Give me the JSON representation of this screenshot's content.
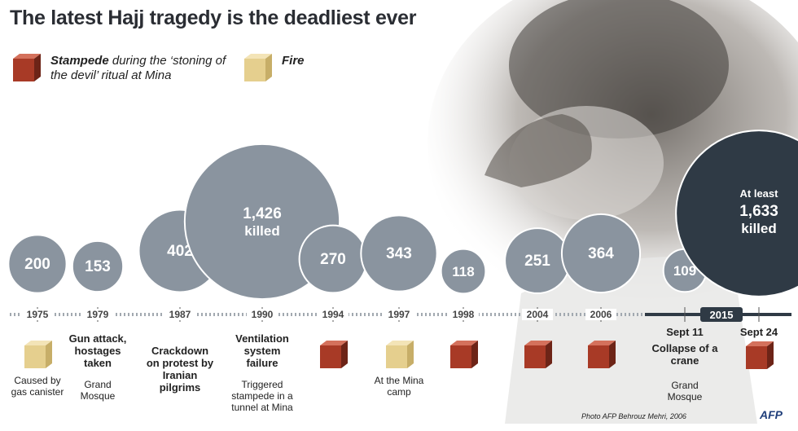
{
  "title": "The latest Hajj tragedy is the deadliest ever",
  "legend": {
    "stampede_bold": "Stampede",
    "stampede_rest": " during the ‘stoning of the devil’ ritual at Mina",
    "fire": "Fire"
  },
  "colors": {
    "stampede": "#a83a26",
    "fire": "#e5cf8e",
    "bubble": "#8a949f",
    "highlight": "#2f3a45",
    "axis": "#9ea5ac"
  },
  "events": [
    {
      "year": "1975",
      "deaths": 200,
      "cause": "fire",
      "desc": "Caused by gas canister",
      "headline": ""
    },
    {
      "year": "1979",
      "deaths": 153,
      "cause": "",
      "desc": "Grand Mosque",
      "headline": "Gun attack, hostages taken"
    },
    {
      "year": "1987",
      "deaths": 402,
      "cause": "",
      "desc": "",
      "headline": "Crackdown on protest by Iranian pilgrims"
    },
    {
      "year": "1990",
      "deaths": 1426,
      "cause": "",
      "desc": "Triggered stampede in a tunnel at Mina",
      "headline": "Ventilation system failure",
      "label_suffix": "killed"
    },
    {
      "year": "1994",
      "deaths": 270,
      "cause": "stampede",
      "desc": "",
      "headline": ""
    },
    {
      "year": "1997",
      "deaths": 343,
      "cause": "fire",
      "desc": "At the Mina camp",
      "headline": ""
    },
    {
      "year": "1998",
      "deaths": 118,
      "cause": "stampede",
      "desc": "",
      "headline": ""
    },
    {
      "year": "2004",
      "deaths": 251,
      "cause": "stampede",
      "desc": "",
      "headline": ""
    },
    {
      "year": "2006",
      "deaths": 364,
      "cause": "stampede",
      "desc": "",
      "headline": ""
    },
    {
      "year": "2015",
      "date": "Sept 11",
      "deaths": 109,
      "cause": "",
      "desc": "Grand Mosque",
      "headline": "Collapse of a crane"
    },
    {
      "year": "2015",
      "date": "Sept 24",
      "deaths": 1633,
      "cause": "stampede",
      "desc": "",
      "headline": "",
      "label_prefix": "At least",
      "label_suffix": "killed",
      "highlight": true
    }
  ],
  "chart_data": {
    "type": "bubble-timeline",
    "title": "The latest Hajj tragedy is the deadliest ever",
    "x": [
      "1975",
      "1979",
      "1987",
      "1990",
      "1994",
      "1997",
      "1998",
      "2004",
      "2006",
      "2015 Sept 11",
      "2015 Sept 24"
    ],
    "values": [
      200,
      153,
      402,
      1426,
      270,
      343,
      118,
      251,
      364,
      109,
      1633
    ],
    "value_display": [
      "200",
      "153",
      "402",
      "1,426",
      "270",
      "343",
      "118",
      "251",
      "364",
      "109",
      "1,633"
    ],
    "legend": [
      "Stampede during the ‘stoning of the devil’ ritual at Mina",
      "Fire"
    ]
  },
  "credit": "Photo AFP Behrouz Mehri, 2006",
  "agency": "AFP"
}
